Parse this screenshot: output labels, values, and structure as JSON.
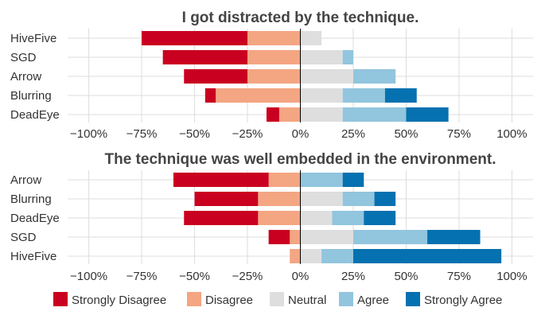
{
  "chart_data": [
    {
      "type": "bar",
      "orientation": "horizontal",
      "stacked": "diverging",
      "title": "I got distracted by the technique.",
      "categories": [
        "HiveFive",
        "SGD",
        "Arrow",
        "Blurring",
        "DeadEye"
      ],
      "series": [
        {
          "name": "Strongly Disagree",
          "values": [
            -50,
            -40,
            -30,
            -5,
            -6
          ]
        },
        {
          "name": "Disagree",
          "values": [
            -25,
            -25,
            -25,
            -40,
            -10
          ]
        },
        {
          "name": "Neutral",
          "values": [
            10,
            20,
            25,
            20,
            20
          ]
        },
        {
          "name": "Agree",
          "values": [
            0,
            5,
            20,
            20,
            30
          ]
        },
        {
          "name": "Strongly Agree",
          "values": [
            0,
            0,
            0,
            15,
            20
          ]
        }
      ],
      "xlim": [
        -110,
        110
      ],
      "xticks": [
        -100,
        -75,
        -50,
        -25,
        0,
        25,
        50,
        75,
        100
      ],
      "xtick_labels": [
        "−100%",
        "−75%",
        "−50%",
        "−25%",
        "0%",
        "25%",
        "50%",
        "75%",
        "100%"
      ],
      "grid": true
    },
    {
      "type": "bar",
      "orientation": "horizontal",
      "stacked": "diverging",
      "title": "The technique was well embedded in the environment.",
      "categories": [
        "Arrow",
        "Blurring",
        "DeadEye",
        "SGD",
        "HiveFive"
      ],
      "series": [
        {
          "name": "Strongly Disagree",
          "values": [
            -45,
            -30,
            -35,
            -10,
            0
          ]
        },
        {
          "name": "Disagree",
          "values": [
            -15,
            -20,
            -20,
            -5,
            -5
          ]
        },
        {
          "name": "Neutral",
          "values": [
            0,
            20,
            15,
            25,
            10
          ]
        },
        {
          "name": "Agree",
          "values": [
            20,
            15,
            15,
            35,
            15
          ]
        },
        {
          "name": "Strongly Agree",
          "values": [
            10,
            10,
            15,
            25,
            70
          ]
        }
      ],
      "xlim": [
        -110,
        110
      ],
      "xticks": [
        -100,
        -75,
        -50,
        -25,
        0,
        25,
        50,
        75,
        100
      ],
      "xtick_labels": [
        "−100%",
        "−75%",
        "−50%",
        "−25%",
        "0%",
        "25%",
        "50%",
        "75%",
        "100%"
      ],
      "grid": true
    }
  ],
  "legend": {
    "placement": "bottom",
    "items": [
      {
        "name": "Strongly Disagree",
        "color": "#ca0020"
      },
      {
        "name": "Disagree",
        "color": "#f4a582"
      },
      {
        "name": "Neutral",
        "color": "#dedede"
      },
      {
        "name": "Agree",
        "color": "#92c5de"
      },
      {
        "name": "Strongly Agree",
        "color": "#0571b0"
      }
    ]
  }
}
